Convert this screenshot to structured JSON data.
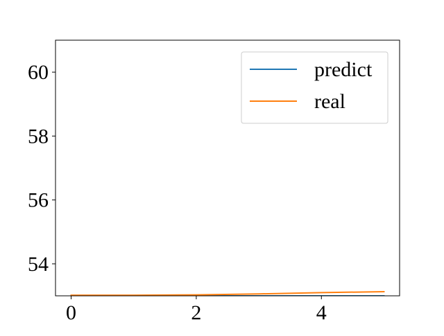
{
  "chart_data": {
    "type": "line",
    "title": "",
    "xlabel": "",
    "ylabel": "",
    "xlim": [
      -0.25,
      5.25
    ],
    "ylim": [
      53.0,
      61.0
    ],
    "x_ticks": [
      0,
      2,
      4
    ],
    "y_ticks": [
      54,
      56,
      58,
      60
    ],
    "grid": false,
    "legend_position": "upper right",
    "series": [
      {
        "name": "predict",
        "color": "#1f77b4",
        "x": [
          0,
          1,
          2,
          3,
          4,
          5
        ],
        "y": [
          53.0,
          53.0,
          53.0,
          53.0,
          53.0,
          53.0
        ]
      },
      {
        "name": "real",
        "color": "#ff7f0e",
        "x": [
          0,
          1,
          2,
          3,
          4,
          5
        ],
        "y": [
          53.02,
          53.02,
          53.03,
          53.06,
          53.1,
          53.13
        ]
      }
    ]
  }
}
